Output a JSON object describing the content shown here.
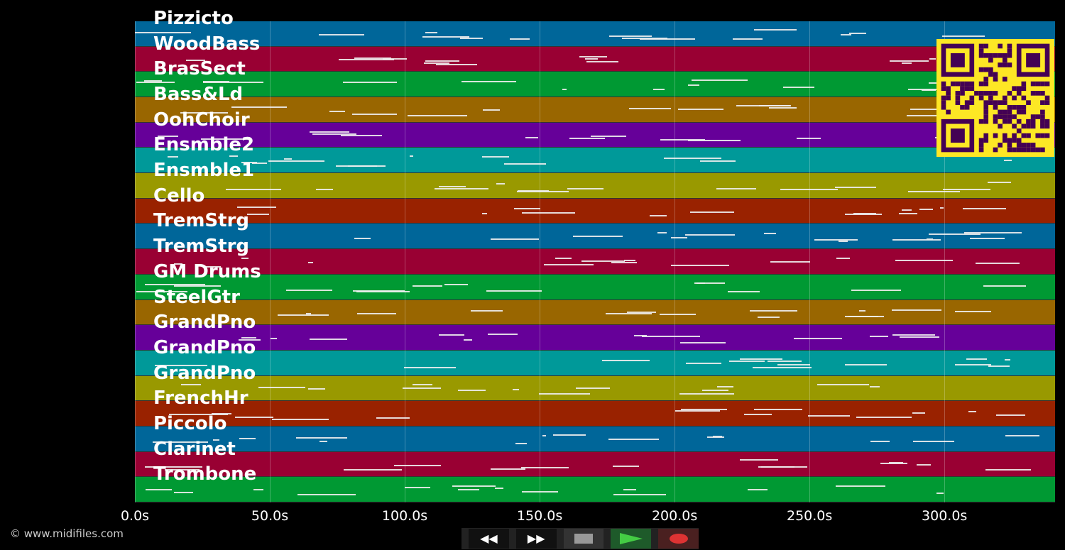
{
  "tracks": [
    "Pizzicto",
    "WoodBass",
    "BrasSect",
    "Bass&Ld",
    "OohChoir",
    "Ensmble2",
    "Ensmble1",
    "Cello",
    "TremStrg",
    "TremStrg",
    "GM Drums",
    "SteelGtr",
    "GrandPno",
    "GrandPno",
    "GrandPno",
    "FrenchHr",
    "Piccolo",
    "Clarinet",
    "Trombone"
  ],
  "band_colors": [
    "#006699",
    "#990033",
    "#009933",
    "#996600",
    "#660099",
    "#009999",
    "#999900",
    "#992200"
  ],
  "axis": {
    "max_seconds": 341,
    "ticks": [
      "0.0s",
      "50.0s",
      "100.0s",
      "150.0s",
      "200.0s",
      "250.0s",
      "300.0s"
    ],
    "tick_values": [
      0,
      50,
      100,
      150,
      200,
      250,
      300
    ]
  },
  "copyright": "© www.midifiles.com",
  "controls": {
    "rewind": "◀◀",
    "forward": "▶▶",
    "stop_icon": "stop-icon",
    "play_icon": "play-icon",
    "record_icon": "record-icon"
  },
  "qr_colors": {
    "fg": "#440154",
    "bg": "#fde725"
  }
}
